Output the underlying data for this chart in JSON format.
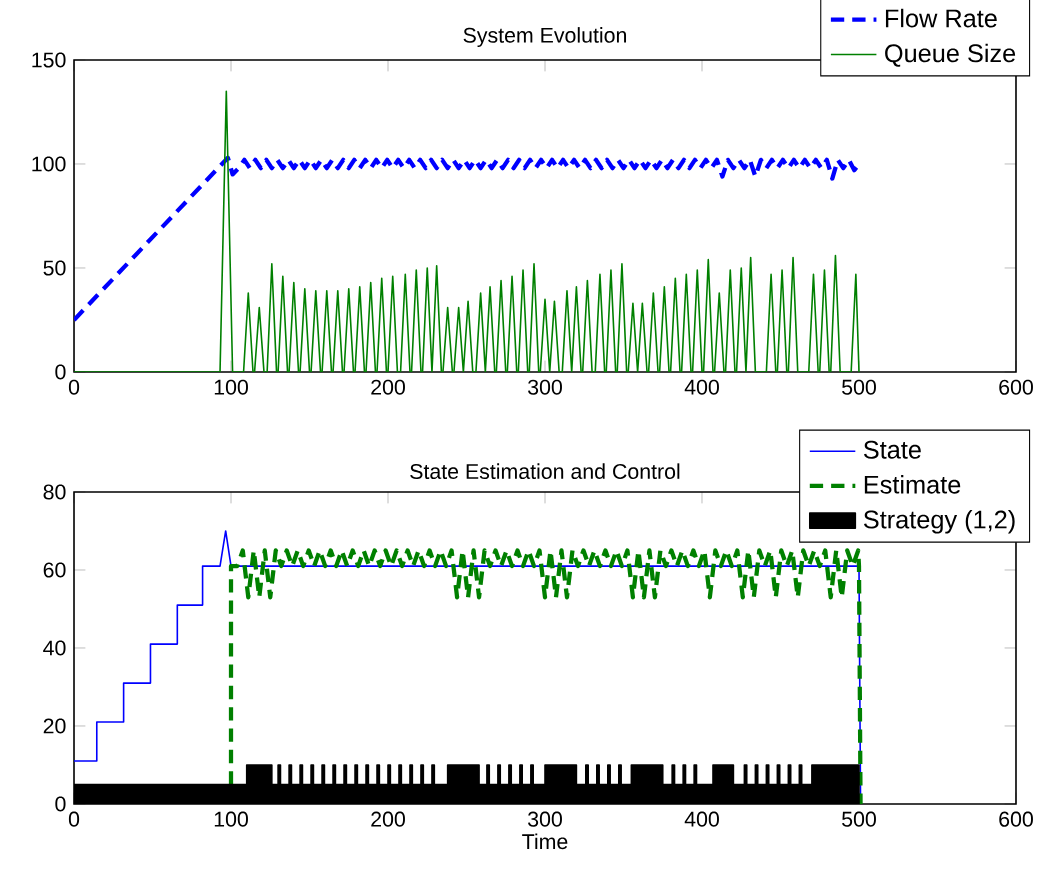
{
  "chart_data": [
    {
      "type": "line",
      "title": "System Evolution",
      "xlim": [
        0,
        600
      ],
      "ylim": [
        0,
        150
      ],
      "xticks": [
        0,
        100,
        200,
        300,
        400,
        500,
        600
      ],
      "yticks": [
        0,
        50,
        100,
        150
      ],
      "legend": "top right",
      "series": [
        {
          "name": "Flow Rate",
          "color": "#0000ff",
          "line_style": "dashed",
          "x": [
            0,
            98,
            101,
            105,
            108.5,
            112,
            115.5,
            119,
            122.5,
            126,
            129.5,
            133,
            136.5,
            140,
            143.5,
            147,
            150.5,
            154,
            157.5,
            161,
            164.5,
            168,
            171.5,
            175,
            178.5,
            182,
            185.5,
            189,
            192.5,
            196,
            199.5,
            203,
            206.5,
            210,
            213.5,
            217,
            220.5,
            224,
            227.5,
            231,
            234.5,
            238,
            241.5,
            245,
            248.5,
            252,
            255.5,
            259,
            262.5,
            266,
            269.5,
            273,
            276.5,
            280,
            283.5,
            287,
            290.5,
            294,
            297.5,
            301,
            304.5,
            308,
            311.5,
            315,
            318.5,
            322,
            325.5,
            329,
            332.5,
            336,
            339.5,
            343,
            346.5,
            350,
            353.5,
            357,
            360.5,
            364,
            367.5,
            371,
            374.5,
            378,
            381.5,
            385,
            388.5,
            392,
            395.5,
            399,
            402.5,
            406,
            409.5,
            413,
            416.5,
            420,
            423.5,
            427,
            430.5,
            434,
            437.5,
            441,
            444.5,
            448,
            451.5,
            455,
            458.5,
            462,
            465.5,
            469,
            472.5,
            476,
            479.5,
            483,
            486.5,
            490,
            493.5,
            497,
            500
          ],
          "values": [
            25,
            103,
            95,
            98,
            102,
            98,
            102,
            98,
            102,
            98,
            102,
            98,
            102,
            98,
            102,
            98,
            102,
            98,
            102,
            98,
            102,
            98,
            102,
            98,
            102,
            98,
            102,
            98,
            102,
            98,
            102,
            98,
            102,
            98,
            102,
            98,
            102,
            98,
            102,
            98,
            102,
            98,
            102,
            98,
            102,
            98,
            102,
            98,
            102,
            98,
            102,
            98,
            102,
            98,
            102,
            98,
            102,
            98,
            102,
            98,
            102,
            98,
            102,
            98,
            102,
            98,
            102,
            98,
            102,
            98,
            102,
            98,
            102,
            98,
            102,
            98,
            102,
            98,
            102,
            98,
            102,
            98,
            102,
            98,
            102,
            98,
            102,
            98,
            102,
            98,
            102,
            94,
            102,
            98,
            102,
            98,
            102,
            94,
            102,
            98,
            102,
            98,
            102,
            98,
            102,
            98,
            102,
            98,
            102,
            98,
            102,
            93,
            102,
            98,
            102,
            97,
            100
          ]
        },
        {
          "name": "Queue Size",
          "color": "#008000",
          "x": [
            0,
            93,
            97,
            101,
            108,
            111,
            114,
            115,
            118,
            121,
            123,
            126,
            129,
            130,
            133,
            136,
            137,
            140,
            143,
            144,
            147,
            150,
            151,
            154,
            157,
            158,
            161,
            164,
            165,
            168,
            171,
            172,
            175,
            178,
            179,
            182,
            185,
            186,
            189,
            192,
            193,
            196,
            199,
            200,
            203,
            206,
            208,
            211,
            214,
            215,
            218,
            221,
            222,
            225,
            228,
            228,
            231,
            234,
            235,
            238,
            241,
            242,
            245,
            248,
            248,
            251,
            254,
            256,
            259,
            262,
            262,
            265,
            268,
            269,
            272,
            275,
            276,
            279,
            282,
            283,
            286,
            289,
            290,
            293,
            296,
            297,
            300,
            303,
            303,
            306,
            309,
            311,
            314,
            317,
            317,
            320,
            323,
            324,
            327,
            330,
            332,
            335,
            338,
            339,
            342,
            345,
            346,
            349,
            352,
            353,
            356,
            359,
            359,
            362,
            365,
            366,
            369,
            372,
            373,
            376,
            379,
            380,
            383,
            386,
            387,
            390,
            393,
            394,
            397,
            400,
            401,
            404,
            407,
            408,
            411,
            414,
            415,
            418,
            421,
            422,
            425,
            428,
            428,
            431,
            434,
            441,
            444,
            447,
            448,
            451,
            454,
            455,
            458,
            461,
            468,
            471,
            474,
            475,
            478,
            481,
            482,
            485,
            488,
            495,
            498,
            500
          ],
          "values": [
            0,
            0,
            135,
            0,
            0,
            38,
            0,
            0,
            31,
            0,
            0,
            52,
            0,
            0,
            46,
            0,
            0,
            43,
            0,
            0,
            40,
            0,
            0,
            39,
            0,
            0,
            39,
            0,
            0,
            39,
            0,
            0,
            40,
            0,
            0,
            41,
            0,
            0,
            43,
            0,
            0,
            45,
            0,
            0,
            46,
            0,
            0,
            47,
            0,
            0,
            49,
            0,
            0,
            50,
            0,
            0,
            51,
            0,
            0,
            31,
            0,
            0,
            31,
            0,
            0,
            34,
            0,
            0,
            38,
            0,
            0,
            41,
            0,
            0,
            44,
            0,
            0,
            46,
            0,
            0,
            49,
            0,
            0,
            52,
            0,
            0,
            35,
            0,
            0,
            34,
            0,
            0,
            39,
            0,
            0,
            41,
            0,
            0,
            44,
            0,
            0,
            47,
            0,
            0,
            49,
            0,
            0,
            52,
            0,
            0,
            33,
            0,
            0,
            33,
            0,
            0,
            38,
            0,
            0,
            41,
            0,
            0,
            45,
            0,
            0,
            47,
            0,
            0,
            49,
            0,
            0,
            54,
            0,
            0,
            38,
            0,
            0,
            49,
            0,
            0,
            50,
            0,
            0,
            55,
            0,
            0,
            47,
            0,
            0,
            49,
            0,
            0,
            55,
            0,
            0,
            47,
            0,
            0,
            49,
            0,
            0,
            56,
            0,
            0,
            47,
            0
          ]
        }
      ]
    },
    {
      "type": "line",
      "title": "State Estimation and Control",
      "xlabel": "Time",
      "xlim": [
        0,
        600
      ],
      "ylim": [
        0,
        80
      ],
      "xticks": [
        0,
        100,
        200,
        300,
        400,
        500,
        600
      ],
      "yticks": [
        0,
        20,
        40,
        60,
        80
      ],
      "legend": "top right",
      "series": [
        {
          "name": "State",
          "color": "#0000ff",
          "x": [
            0,
            14.5,
            14.5,
            31.6,
            31.6,
            48.7,
            48.7,
            65.8,
            65.8,
            81.9,
            81.9,
            93,
            96.6,
            100,
            500,
            501
          ],
          "values": [
            11,
            11,
            21,
            21,
            31,
            31,
            41,
            41,
            51,
            51,
            61,
            61,
            70,
            61,
            61,
            0
          ]
        },
        {
          "name": "Estimate",
          "color": "#008000",
          "line_style": "dashed",
          "x": [
            100,
            100,
            104,
            107.5,
            111,
            114.5,
            118,
            121.5,
            125,
            128.5,
            132,
            135.5,
            139,
            142.5,
            146,
            149.5,
            153,
            156.5,
            160,
            163.5,
            167,
            170.5,
            174,
            177.5,
            181,
            184.5,
            188,
            191.5,
            195,
            198.5,
            202,
            205.5,
            209,
            212.5,
            216,
            219.5,
            223,
            226.5,
            230,
            233.5,
            237,
            240.5,
            244,
            247.5,
            251,
            254.5,
            258,
            261.5,
            265,
            268.5,
            272,
            275.5,
            279,
            282.5,
            286,
            289.5,
            293,
            296.5,
            300,
            303.5,
            307,
            310.5,
            314,
            317.5,
            321,
            324.5,
            328,
            331.5,
            335,
            338.5,
            342,
            345.5,
            349,
            352.5,
            356,
            359.5,
            363,
            366.5,
            370,
            373.5,
            377,
            380.5,
            384,
            387.5,
            391,
            394.5,
            398,
            401.5,
            405,
            408.5,
            412,
            415.5,
            419,
            422.5,
            426,
            429.5,
            433,
            436.5,
            440,
            443.5,
            447,
            450.5,
            454,
            457.5,
            461,
            464.5,
            468,
            471.5,
            475,
            478.5,
            482,
            485.5,
            489,
            492.5,
            496,
            499.5,
            500,
            501
          ],
          "values": [
            5,
            61,
            61,
            65,
            53,
            65,
            53,
            65,
            53,
            65,
            61,
            65,
            61,
            65,
            61,
            65,
            61,
            65,
            61,
            65,
            61,
            65,
            61,
            65,
            61,
            65,
            61,
            65,
            61,
            65,
            61,
            65,
            61,
            65,
            61,
            65,
            61,
            65,
            61,
            65,
            61,
            65,
            53,
            65,
            53,
            65,
            53,
            65,
            61,
            65,
            61,
            65,
            61,
            65,
            61,
            65,
            61,
            65,
            53,
            65,
            53,
            65,
            53,
            65,
            61,
            65,
            61,
            65,
            61,
            65,
            61,
            65,
            61,
            65,
            53,
            65,
            53,
            65,
            53,
            65,
            61,
            65,
            61,
            65,
            61,
            65,
            61,
            65,
            53,
            65,
            61,
            65,
            61,
            65,
            53,
            65,
            53,
            65,
            61,
            65,
            53,
            65,
            61,
            65,
            53,
            65,
            61,
            65,
            61,
            65,
            53,
            65,
            53,
            65,
            61,
            65,
            61,
            0
          ]
        },
        {
          "name": "Strategy (1,2)",
          "type": "area",
          "color": "#000000",
          "x": [
            0,
            110,
            110,
            126,
            126,
            130,
            130,
            131.5,
            131.5,
            137,
            137,
            138.5,
            138.5,
            144,
            144,
            145.5,
            145.5,
            151,
            151,
            152.5,
            152.5,
            158,
            158,
            159.5,
            159.5,
            165,
            165,
            166.5,
            166.5,
            172,
            172,
            173.5,
            173.5,
            179,
            179,
            180.5,
            180.5,
            186,
            186,
            187.5,
            187.5,
            193,
            193,
            194.5,
            194.5,
            200,
            200,
            201.5,
            201.5,
            207,
            207,
            208.5,
            208.5,
            214,
            214,
            215.5,
            215.5,
            221,
            221,
            222.5,
            222.5,
            228,
            228,
            229.5,
            229.5,
            238,
            238,
            258,
            258,
            263,
            263,
            264.5,
            264.5,
            270,
            270,
            271.5,
            271.5,
            277,
            277,
            278.5,
            278.5,
            284,
            284,
            285.5,
            285.5,
            291,
            291,
            292.5,
            292.5,
            300,
            300,
            320,
            320,
            326,
            326,
            327.5,
            327.5,
            333,
            333,
            334.5,
            334.5,
            340,
            340,
            341.5,
            341.5,
            347,
            347,
            348.5,
            348.5,
            355,
            355,
            375,
            375,
            381,
            381,
            382.5,
            382.5,
            388,
            388,
            389.5,
            389.5,
            395,
            395,
            396.5,
            396.5,
            407,
            407,
            420,
            420,
            427,
            427,
            428.5,
            428.5,
            434,
            434,
            435.5,
            435.5,
            441,
            441,
            442.5,
            442.5,
            448,
            448,
            449.5,
            449.5,
            455,
            455,
            456.5,
            456.5,
            462,
            462,
            463.5,
            463.5,
            470,
            470,
            500,
            500
          ],
          "values": [
            5,
            5,
            10,
            10,
            5,
            5,
            10,
            10,
            5,
            5,
            10,
            10,
            5,
            5,
            10,
            10,
            5,
            5,
            10,
            10,
            5,
            5,
            10,
            10,
            5,
            5,
            10,
            10,
            5,
            5,
            10,
            10,
            5,
            5,
            10,
            10,
            5,
            5,
            10,
            10,
            5,
            5,
            10,
            10,
            5,
            5,
            10,
            10,
            5,
            5,
            10,
            10,
            5,
            5,
            10,
            10,
            5,
            5,
            10,
            10,
            5,
            5,
            10,
            10,
            5,
            5,
            10,
            10,
            5,
            5,
            10,
            10,
            5,
            5,
            10,
            10,
            5,
            5,
            10,
            10,
            5,
            5,
            10,
            10,
            5,
            5,
            10,
            10,
            5,
            5,
            10,
            10,
            5,
            5,
            10,
            10,
            5,
            5,
            10,
            10,
            5,
            5,
            10,
            10,
            5,
            5,
            10,
            10,
            5,
            5,
            10,
            10,
            5,
            5,
            10,
            10,
            5,
            5,
            10,
            10,
            5,
            5,
            10,
            10,
            5,
            5,
            10,
            10,
            5,
            5,
            10,
            10,
            5,
            5,
            10,
            10,
            5,
            5,
            10,
            10,
            5,
            5,
            10,
            10,
            5,
            5,
            10,
            10,
            5,
            5,
            10,
            10,
            5,
            5,
            10,
            10,
            0
          ]
        }
      ]
    }
  ]
}
